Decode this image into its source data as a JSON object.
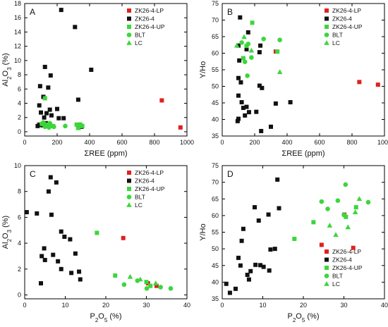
{
  "colors": {
    "ZK26-4-LP": "#e02020",
    "ZK26-4": "#111111",
    "ZK26-4-UP": "#3cd63c",
    "BLT": "#3cd63c",
    "LC": "#3cd63c"
  },
  "legend_entries": [
    {
      "name": "ZK26-4-LP",
      "marker": "square"
    },
    {
      "name": "ZK26-4",
      "marker": "square"
    },
    {
      "name": "ZK26-4-UP",
      "marker": "square"
    },
    {
      "name": "BLT",
      "marker": "circle"
    },
    {
      "name": "LC",
      "marker": "triangle"
    }
  ],
  "chart_data": [
    {
      "panel": "A",
      "type": "scatter",
      "xlabel": "ΣREE (ppm)",
      "ylabel_parts": [
        "Al",
        "2",
        "O",
        "3",
        " (%)"
      ],
      "xlim": [
        0,
        1000
      ],
      "ylim": [
        -0.6,
        18
      ],
      "xticks": [
        0,
        200,
        400,
        600,
        800,
        1000
      ],
      "yticks": [
        0,
        2,
        4,
        6,
        8,
        10,
        12,
        14,
        16,
        18
      ],
      "legend_position": "top-right",
      "series": [
        {
          "name": "ZK26-4-LP",
          "marker": "square",
          "points": [
            [
              845,
              4.4
            ],
            [
              960,
              0.6
            ],
            [
              340,
              1.0
            ]
          ]
        },
        {
          "name": "ZK26-4",
          "marker": "square",
          "points": [
            [
              225,
              17.1
            ],
            [
              310,
              14.7
            ],
            [
              410,
              8.7
            ],
            [
              125,
              9.1
            ],
            [
              160,
              7.9
            ],
            [
              95,
              6.4
            ],
            [
              145,
              6.2
            ],
            [
              115,
              4.9
            ],
            [
              330,
              4.5
            ],
            [
              90,
              3.7
            ],
            [
              155,
              3.1
            ],
            [
              200,
              3.2
            ],
            [
              135,
              2.6
            ],
            [
              165,
              2.3
            ],
            [
              100,
              2.7
            ],
            [
              210,
              1.9
            ],
            [
              240,
              1.9
            ],
            [
              120,
              2.0
            ],
            [
              90,
              1.0
            ],
            [
              110,
              0.9
            ],
            [
              130,
              1.2
            ],
            [
              350,
              0.7
            ],
            [
              80,
              0.8
            ]
          ]
        },
        {
          "name": "ZK26-4-UP",
          "marker": "square",
          "points": [
            [
              140,
              1.0
            ],
            [
              175,
              0.8
            ],
            [
              320,
              1.0
            ],
            [
              355,
              0.8
            ],
            [
              125,
              4.7
            ]
          ]
        },
        {
          "name": "BLT",
          "marker": "circle",
          "points": [
            [
              105,
              1.1
            ],
            [
              125,
              0.7
            ],
            [
              150,
              0.6
            ],
            [
              180,
              0.7
            ],
            [
              250,
              0.8
            ],
            [
              330,
              0.6
            ],
            [
              115,
              1.3
            ],
            [
              155,
              1.2
            ],
            [
              345,
              1.0
            ]
          ]
        },
        {
          "name": "LC",
          "marker": "triangle",
          "points": [
            [
              130,
              0.8
            ],
            [
              165,
              1.0
            ],
            [
              330,
              0.5
            ],
            [
              350,
              0.9
            ]
          ]
        }
      ]
    },
    {
      "panel": "B",
      "type": "scatter",
      "xlabel": "ΣREE (ppm)",
      "ylabel_parts": [
        "Y/Ho"
      ],
      "xlim": [
        0,
        1000
      ],
      "ylim": [
        35,
        75
      ],
      "xticks": [
        0,
        200,
        400,
        600,
        800,
        1000
      ],
      "yticks": [
        35,
        40,
        45,
        50,
        55,
        60,
        65,
        70,
        75
      ],
      "legend_position": "top-right",
      "series": [
        {
          "name": "ZK26-4-LP",
          "marker": "square",
          "points": [
            [
              845,
              51.3
            ],
            [
              960,
              50.5
            ],
            [
              330,
              60.5
            ]
          ]
        },
        {
          "name": "ZK26-4",
          "marker": "square",
          "points": [
            [
              110,
              70.8
            ],
            [
              160,
              66.3
            ],
            [
              235,
              62.3
            ],
            [
              100,
              62.3
            ],
            [
              150,
              61.2
            ],
            [
              230,
              60.3
            ],
            [
              105,
              57.8
            ],
            [
              100,
              52.5
            ],
            [
              115,
              51.2
            ],
            [
              230,
              50.2
            ],
            [
              245,
              49.5
            ],
            [
              100,
              47.2
            ],
            [
              120,
              45.2
            ],
            [
              130,
              43.5
            ],
            [
              420,
              45.2
            ],
            [
              330,
              44.8
            ],
            [
              150,
              43.8
            ],
            [
              165,
              42.2
            ],
            [
              240,
              36.5
            ],
            [
              300,
              37.8
            ],
            [
              95,
              39.5
            ],
            [
              140,
              41.2
            ],
            [
              210,
              42.3
            ],
            [
              100,
              40.2
            ]
          ]
        },
        {
          "name": "ZK26-4-UP",
          "marker": "square",
          "points": [
            [
              185,
              69.2
            ],
            [
              130,
              58.5
            ],
            [
              340,
              60.5
            ],
            [
              150,
              62.2
            ]
          ]
        },
        {
          "name": "BLT",
          "marker": "circle",
          "points": [
            [
              120,
              63.2
            ],
            [
              160,
              62.8
            ],
            [
              255,
              64.3
            ],
            [
              355,
              64.0
            ],
            [
              140,
              57.4
            ],
            [
              180,
              58.7
            ],
            [
              155,
              53.2
            ]
          ]
        },
        {
          "name": "LC",
          "marker": "triangle",
          "points": [
            [
              90,
              62.3
            ],
            [
              135,
              64.9
            ],
            [
              180,
              60.8
            ],
            [
              355,
              54.3
            ]
          ]
        }
      ]
    },
    {
      "panel": "C",
      "type": "scatter",
      "xlabel_parts": [
        "P",
        "2",
        "O",
        "5",
        " (%)"
      ],
      "ylabel_parts": [
        "Al",
        "2",
        "O",
        "3",
        " (%)"
      ],
      "xlim": [
        0,
        40
      ],
      "ylim": [
        -0.3,
        10
      ],
      "xticks": [
        0,
        10,
        20,
        30,
        40
      ],
      "yticks": [
        0,
        2,
        4,
        6,
        8,
        10
      ],
      "legend_position": "top-right",
      "series": [
        {
          "name": "ZK26-4-LP",
          "marker": "square",
          "points": [
            [
              24.3,
              4.4
            ],
            [
              30.4,
              0.9
            ],
            [
              32.5,
              0.7
            ]
          ]
        },
        {
          "name": "ZK26-4",
          "marker": "square",
          "points": [
            [
              6.4,
              9.1
            ],
            [
              7.8,
              8.7
            ],
            [
              5.9,
              8.0
            ],
            [
              0.5,
              6.4
            ],
            [
              3.0,
              6.3
            ],
            [
              6.6,
              6.2
            ],
            [
              9.0,
              4.9
            ],
            [
              9.8,
              4.5
            ],
            [
              11.2,
              4.3
            ],
            [
              4.8,
              3.6
            ],
            [
              4.2,
              3.0
            ],
            [
              7.0,
              3.1
            ],
            [
              8.2,
              2.6
            ],
            [
              5.0,
              2.7
            ],
            [
              12.5,
              3.2
            ],
            [
              13.4,
              1.8
            ],
            [
              11.5,
              1.7
            ],
            [
              9.0,
              2.0
            ],
            [
              13.7,
              1.2
            ],
            [
              4.0,
              0.9
            ]
          ]
        },
        {
          "name": "ZK26-4-UP",
          "marker": "square",
          "points": [
            [
              17.8,
              4.8
            ],
            [
              22.3,
              1.5
            ],
            [
              30.0,
              1.0
            ],
            [
              31.0,
              0.7
            ]
          ]
        },
        {
          "name": "BLT",
          "marker": "circle",
          "points": [
            [
              24.5,
              0.8
            ],
            [
              27.8,
              1.1
            ],
            [
              30.1,
              0.5
            ],
            [
              33.5,
              0.6
            ],
            [
              36.0,
              0.5
            ]
          ]
        },
        {
          "name": "LC",
          "marker": "triangle",
          "points": [
            [
              26.0,
              1.4
            ],
            [
              28.5,
              1.2
            ],
            [
              32.3,
              0.9
            ]
          ]
        }
      ]
    },
    {
      "panel": "D",
      "type": "scatter",
      "xlabel_parts": [
        "P",
        "2",
        "O",
        "5",
        " (%)"
      ],
      "ylabel_parts": [
        "Y/Ho"
      ],
      "xlim": [
        0,
        40
      ],
      "ylim": [
        35,
        75
      ],
      "xticks": [
        0,
        10,
        20,
        30,
        40
      ],
      "yticks": [
        35,
        40,
        45,
        50,
        55,
        60,
        65,
        70,
        75
      ],
      "legend_position": "bottom-right",
      "series": [
        {
          "name": "ZK26-4-LP",
          "marker": "square",
          "points": [
            [
              24.5,
              51.2
            ],
            [
              30.1,
              60.3
            ],
            [
              32.3,
              50.3
            ]
          ]
        },
        {
          "name": "ZK26-4",
          "marker": "square",
          "points": [
            [
              13.6,
              70.8
            ],
            [
              5.2,
              56.0
            ],
            [
              8.0,
              62.5
            ],
            [
              14.0,
              62.2
            ],
            [
              11.4,
              60.3
            ],
            [
              4.8,
              52.4
            ],
            [
              9.0,
              58.5
            ],
            [
              13.0,
              50.0
            ],
            [
              11.9,
              49.8
            ],
            [
              4.0,
              47.3
            ],
            [
              8.2,
              45.2
            ],
            [
              9.4,
              45.1
            ],
            [
              10.2,
              44.6
            ],
            [
              4.5,
              45.0
            ],
            [
              7.0,
              43.3
            ],
            [
              11.6,
              43.5
            ],
            [
              6.2,
              42.2
            ],
            [
              6.6,
              40.8
            ],
            [
              3.3,
              38.0
            ],
            [
              1.0,
              39.5
            ],
            [
              1.9,
              36.8
            ]
          ]
        },
        {
          "name": "ZK26-4-UP",
          "marker": "square",
          "points": [
            [
              17.8,
              53.0
            ],
            [
              22.5,
              58.0
            ],
            [
              30.5,
              59.6
            ],
            [
              33.0,
              62.5
            ]
          ]
        },
        {
          "name": "BLT",
          "marker": "circle",
          "points": [
            [
              24.5,
              64.2
            ],
            [
              26.0,
              62.0
            ],
            [
              30.4,
              69.3
            ],
            [
              36.0,
              64.0
            ],
            [
              28.5,
              64.5
            ],
            [
              30.0,
              60.2
            ]
          ]
        },
        {
          "name": "LC",
          "marker": "triangle",
          "points": [
            [
              26.5,
              57.0
            ],
            [
              28.0,
              54.2
            ],
            [
              31.0,
              56.5
            ],
            [
              32.8,
              61.0
            ],
            [
              33.8,
              65.0
            ]
          ]
        }
      ]
    }
  ]
}
